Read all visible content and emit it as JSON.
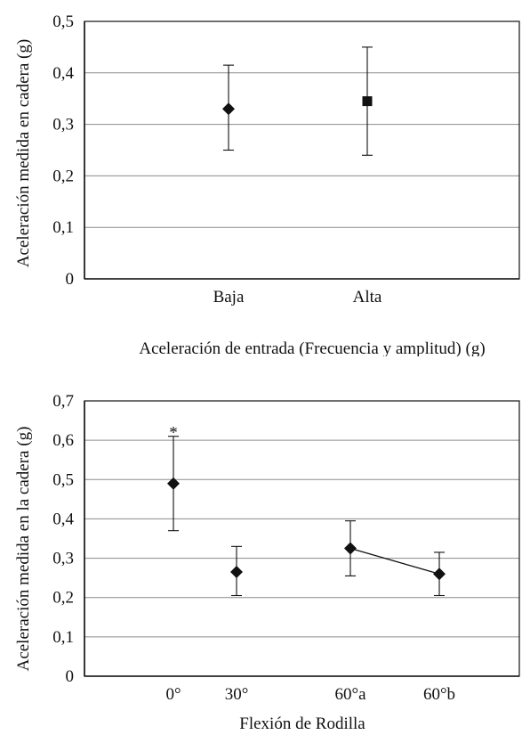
{
  "chart_data": [
    {
      "type": "scatter",
      "categories": [
        "Baja",
        "Alta"
      ],
      "series": [
        {
          "values": [
            0.33,
            0.345
          ],
          "error_low": [
            0.25,
            0.24
          ],
          "error_high": [
            0.415,
            0.45
          ],
          "markers": [
            "diamond",
            "square"
          ]
        }
      ],
      "xlabel": "Aceleración de entrada (Frecuencia y amplitud) (g)",
      "ylabel": "Aceleración medida en  cadera (g)",
      "ylim": [
        0,
        0.5
      ],
      "yticks": [
        "0",
        "0,1",
        "0,2",
        "0,3",
        "0,4",
        "0,5"
      ],
      "grid": true
    },
    {
      "type": "scatter",
      "categories": [
        "0°",
        "30°",
        "60°a",
        "60°b"
      ],
      "series": [
        {
          "values": [
            0.49,
            0.265,
            0.325,
            0.26
          ],
          "error_low": [
            0.37,
            0.205,
            0.255,
            0.205
          ],
          "error_high": [
            0.61,
            0.33,
            0.395,
            0.315
          ],
          "markers": [
            "diamond",
            "diamond",
            "diamond",
            "diamond"
          ],
          "connect": [
            [
              2,
              3
            ]
          ]
        }
      ],
      "annotations": [
        {
          "category": "0°",
          "text": "*"
        }
      ],
      "xlabel": "Flexión de Rodilla",
      "ylabel": "Aceleración medida en la cadera (g)",
      "ylim": [
        0,
        0.7
      ],
      "yticks": [
        "0",
        "0,1",
        "0,2",
        "0,3",
        "0,4",
        "0,5",
        "0,6",
        "0,7"
      ],
      "grid": true
    }
  ]
}
